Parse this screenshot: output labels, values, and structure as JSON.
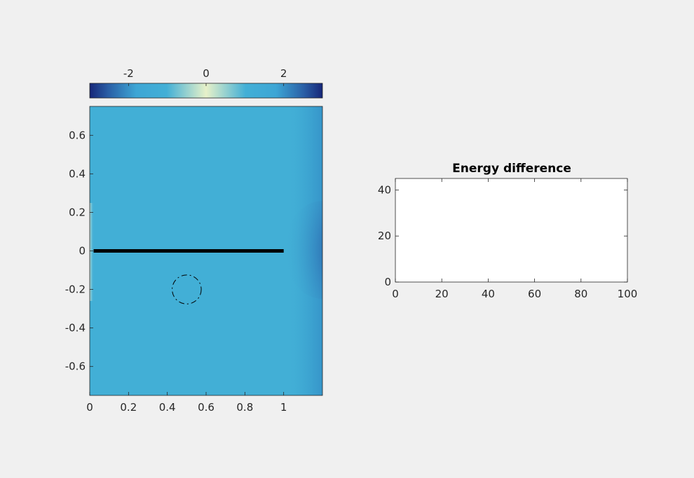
{
  "chart_data": [
    {
      "type": "heatmap",
      "title": "",
      "xlabel": "",
      "ylabel": "",
      "xlim": [
        0,
        1.2
      ],
      "ylim": [
        -0.75,
        0.75
      ],
      "xticks": [
        "0",
        "0.2",
        "0.4",
        "0.6",
        "0.8",
        "1"
      ],
      "xtick_values": [
        0,
        0.2,
        0.4,
        0.6,
        0.8,
        1
      ],
      "yticks": [
        "0.6",
        "0.4",
        "0.2",
        "0",
        "-0.2",
        "-0.4",
        "-0.6"
      ],
      "ytick_values": [
        0.6,
        0.4,
        0.2,
        0,
        -0.2,
        -0.4,
        -0.6
      ],
      "colorbar": {
        "placement": "top",
        "range": [
          -3,
          3
        ],
        "ticks": [
          "-2",
          "0",
          "2"
        ],
        "tick_values": [
          -2,
          0,
          2
        ],
        "colors": [
          "#162779",
          "#3da6d5",
          "#42afd6",
          "#e7f1c9",
          "#42afd6",
          "#3da6d5",
          "#162779"
        ]
      },
      "field": {
        "background_value": -1.5,
        "background_color": "#42afd6"
      },
      "overlays": {
        "line": {
          "x": [
            0.02,
            1.0
          ],
          "y": [
            0,
            0
          ],
          "color": "#000000"
        },
        "circle": {
          "center": [
            0.5,
            -0.2
          ],
          "radius": 0.075,
          "style": "dash-dot",
          "color": "#000000"
        }
      }
    },
    {
      "type": "line",
      "title": "Energy difference",
      "xlabel": "",
      "ylabel": "",
      "xlim": [
        0,
        100
      ],
      "ylim": [
        0,
        45
      ],
      "xticks": [
        "0",
        "20",
        "40",
        "60",
        "80",
        "100"
      ],
      "xtick_values": [
        0,
        20,
        40,
        60,
        80,
        100
      ],
      "yticks": [
        "40",
        "20",
        "0"
      ],
      "ytick_values": [
        40,
        20,
        0
      ],
      "series": []
    }
  ]
}
